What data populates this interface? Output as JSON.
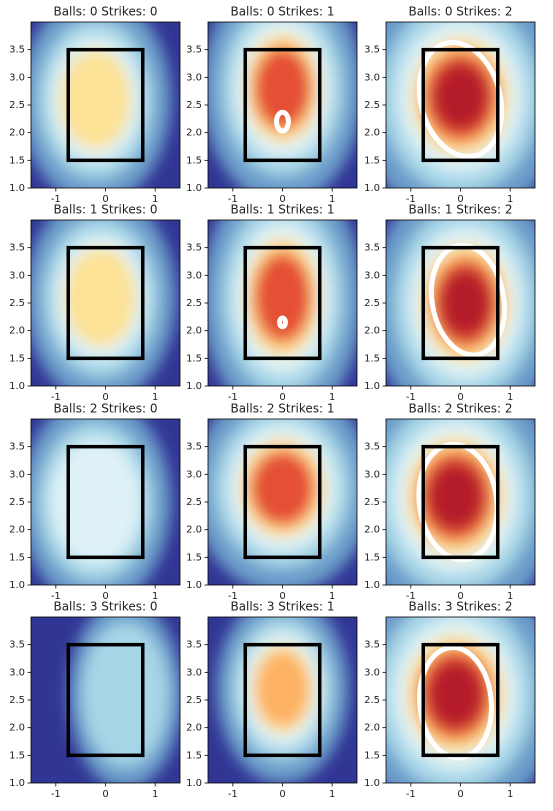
{
  "chart_data": [
    {
      "type": "heatmap",
      "title": "Balls: 0 Strikes: 0",
      "xlim": [
        -1.5,
        1.5
      ],
      "ylim": [
        1.0,
        4.0
      ],
      "xticks": [
        -1,
        0,
        1
      ],
      "yticks": [
        {
          "value": 1.0,
          "label": "1.0"
        },
        1.5,
        {
          "value": 2.0,
          "label": "2.0"
        },
        2.5,
        {
          "value": 3.0,
          "label": "3.0"
        },
        3.5
      ],
      "strike_zone": {
        "x": [
          -0.75,
          0.75
        ],
        "y": [
          1.5,
          3.5
        ]
      }
    },
    {
      "type": "heatmap",
      "title": "Balls: 0 Strikes: 1",
      "xlim": [
        -1.5,
        1.5
      ],
      "ylim": [
        1.0,
        4.0
      ],
      "xticks": [
        -1,
        0,
        1
      ],
      "yticks": [
        {
          "value": 1.0,
          "label": "1.0"
        },
        1.5,
        {
          "value": 2.0,
          "label": "2.0"
        },
        2.5,
        {
          "value": 3.0,
          "label": "3.0"
        },
        3.5
      ],
      "strike_zone": {
        "x": [
          -0.75,
          0.75
        ],
        "y": [
          1.5,
          3.5
        ]
      }
    },
    {
      "type": "heatmap",
      "title": "Balls: 0 Strikes: 2",
      "xlim": [
        -1.5,
        1.5
      ],
      "ylim": [
        1.0,
        4.0
      ],
      "xticks": [
        -1,
        0,
        1
      ],
      "yticks": [
        {
          "value": 1.0,
          "label": "1.0"
        },
        1.5,
        {
          "value": 2.0,
          "label": "2.0"
        },
        2.5,
        {
          "value": 3.0,
          "label": "3.0"
        },
        3.5
      ],
      "strike_zone": {
        "x": [
          -0.75,
          0.75
        ],
        "y": [
          1.5,
          3.5
        ]
      }
    },
    {
      "type": "heatmap",
      "title": "Balls: 1 Strikes: 0",
      "xlim": [
        -1.5,
        1.5
      ],
      "ylim": [
        1.0,
        4.0
      ],
      "xticks": [
        -1,
        0,
        1
      ],
      "yticks": [
        {
          "value": 1.0,
          "label": "1.0"
        },
        1.5,
        {
          "value": 2.0,
          "label": "2.0"
        },
        2.5,
        {
          "value": 3.0,
          "label": "3.0"
        },
        3.5
      ],
      "strike_zone": {
        "x": [
          -0.75,
          0.75
        ],
        "y": [
          1.5,
          3.5
        ]
      }
    },
    {
      "type": "heatmap",
      "title": "Balls: 1 Strikes: 1",
      "xlim": [
        -1.5,
        1.5
      ],
      "ylim": [
        1.0,
        4.0
      ],
      "xticks": [
        -1,
        0,
        1
      ],
      "yticks": [
        {
          "value": 1.0,
          "label": "1.0"
        },
        1.5,
        {
          "value": 2.0,
          "label": "2.0"
        },
        2.5,
        {
          "value": 3.0,
          "label": "3.0"
        },
        3.5
      ],
      "strike_zone": {
        "x": [
          -0.75,
          0.75
        ],
        "y": [
          1.5,
          3.5
        ]
      }
    },
    {
      "type": "heatmap",
      "title": "Balls: 1 Strikes: 2",
      "xlim": [
        -1.5,
        1.5
      ],
      "ylim": [
        1.0,
        4.0
      ],
      "xticks": [
        -1,
        0,
        1
      ],
      "yticks": [
        {
          "value": 1.0,
          "label": "1.0"
        },
        1.5,
        {
          "value": 2.0,
          "label": "2.0"
        },
        2.5,
        {
          "value": 3.0,
          "label": "3.0"
        },
        3.5
      ],
      "strike_zone": {
        "x": [
          -0.75,
          0.75
        ],
        "y": [
          1.5,
          3.5
        ]
      }
    },
    {
      "type": "heatmap",
      "title": "Balls: 2 Strikes: 0",
      "xlim": [
        -1.5,
        1.5
      ],
      "ylim": [
        1.0,
        4.0
      ],
      "xticks": [
        -1,
        0,
        1
      ],
      "yticks": [
        {
          "value": 1.0,
          "label": "1.0"
        },
        1.5,
        {
          "value": 2.0,
          "label": "2.0"
        },
        2.5,
        {
          "value": 3.0,
          "label": "3.0"
        },
        3.5
      ],
      "strike_zone": {
        "x": [
          -0.75,
          0.75
        ],
        "y": [
          1.5,
          3.5
        ]
      }
    },
    {
      "type": "heatmap",
      "title": "Balls: 2 Strikes: 1",
      "xlim": [
        -1.5,
        1.5
      ],
      "ylim": [
        1.0,
        4.0
      ],
      "xticks": [
        -1,
        0,
        1
      ],
      "yticks": [
        {
          "value": 1.0,
          "label": "1.0"
        },
        1.5,
        {
          "value": 2.0,
          "label": "2.0"
        },
        2.5,
        {
          "value": 3.0,
          "label": "3.0"
        },
        3.5
      ],
      "strike_zone": {
        "x": [
          -0.75,
          0.75
        ],
        "y": [
          1.5,
          3.5
        ]
      }
    },
    {
      "type": "heatmap",
      "title": "Balls: 2 Strikes: 2",
      "xlim": [
        -1.5,
        1.5
      ],
      "ylim": [
        1.0,
        4.0
      ],
      "xticks": [
        -1,
        0,
        1
      ],
      "yticks": [
        {
          "value": 1.0,
          "label": "1.0"
        },
        1.5,
        {
          "value": 2.0,
          "label": "2.0"
        },
        2.5,
        {
          "value": 3.0,
          "label": "3.0"
        },
        3.5
      ],
      "strike_zone": {
        "x": [
          -0.75,
          0.75
        ],
        "y": [
          1.5,
          3.5
        ]
      }
    },
    {
      "type": "heatmap",
      "title": "Balls: 3 Strikes: 0",
      "xlim": [
        -1.5,
        1.5
      ],
      "ylim": [
        1.0,
        4.0
      ],
      "xticks": [
        -1,
        0,
        1
      ],
      "yticks": [
        {
          "value": 1.0,
          "label": "1.0"
        },
        1.5,
        {
          "value": 2.0,
          "label": "2.0"
        },
        2.5,
        {
          "value": 3.0,
          "label": "3.0"
        },
        3.5
      ],
      "strike_zone": {
        "x": [
          -0.75,
          0.75
        ],
        "y": [
          1.5,
          3.5
        ]
      }
    },
    {
      "type": "heatmap",
      "title": "Balls: 3 Strikes: 1",
      "xlim": [
        -1.5,
        1.5
      ],
      "ylim": [
        1.0,
        4.0
      ],
      "xticks": [
        -1,
        0,
        1
      ],
      "yticks": [
        {
          "value": 1.0,
          "label": "1.0"
        },
        1.5,
        {
          "value": 2.0,
          "label": "2.0"
        },
        2.5,
        {
          "value": 3.0,
          "label": "3.0"
        },
        3.5
      ],
      "strike_zone": {
        "x": [
          -0.75,
          0.75
        ],
        "y": [
          1.5,
          3.5
        ]
      }
    },
    {
      "type": "heatmap",
      "title": "Balls: 3 Strikes: 2",
      "xlim": [
        -1.5,
        1.5
      ],
      "ylim": [
        1.0,
        4.0
      ],
      "xticks": [
        -1,
        0,
        1
      ],
      "yticks": [
        {
          "value": 1.0,
          "label": "1.0"
        },
        1.5,
        {
          "value": 2.0,
          "label": "2.0"
        },
        2.5,
        {
          "value": 3.0,
          "label": "3.0"
        },
        3.5
      ],
      "strike_zone": {
        "x": [
          -0.75,
          0.75
        ],
        "y": [
          1.5,
          3.5
        ]
      }
    }
  ]
}
